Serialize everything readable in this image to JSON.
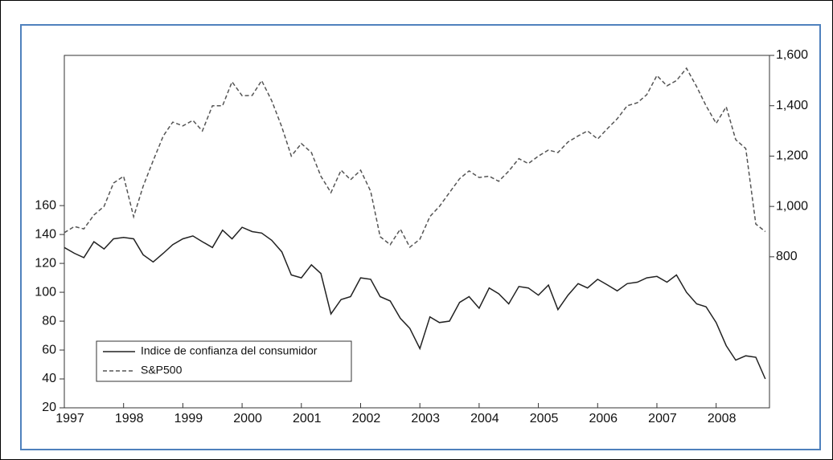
{
  "chart_data": {
    "type": "line",
    "x": [
      1997,
      1997.17,
      1997.33,
      1997.5,
      1997.67,
      1997.83,
      1998,
      1998.17,
      1998.33,
      1998.5,
      1998.67,
      1998.83,
      1999,
      1999.17,
      1999.33,
      1999.5,
      1999.67,
      1999.83,
      2000,
      2000.17,
      2000.33,
      2000.5,
      2000.67,
      2000.83,
      2001,
      2001.17,
      2001.33,
      2001.5,
      2001.67,
      2001.83,
      2002,
      2002.17,
      2002.33,
      2002.5,
      2002.67,
      2002.83,
      2003,
      2003.17,
      2003.33,
      2003.5,
      2003.67,
      2003.83,
      2004,
      2004.17,
      2004.33,
      2004.5,
      2004.67,
      2004.83,
      2005,
      2005.17,
      2005.33,
      2005.5,
      2005.67,
      2005.83,
      2006,
      2006.17,
      2006.33,
      2006.5,
      2006.67,
      2006.83,
      2007,
      2007.17,
      2007.33,
      2007.5,
      2007.67,
      2007.83,
      2008,
      2008.17,
      2008.33,
      2008.5,
      2008.67,
      2008.83
    ],
    "series": [
      {
        "name": "Indice de confianza del consumidor",
        "color": "#222222",
        "dash": false,
        "values": [
          131,
          127,
          124,
          135,
          130,
          137,
          138,
          137,
          126,
          121,
          127,
          133,
          137,
          139,
          135,
          131,
          143,
          137,
          145,
          142,
          141,
          136,
          128,
          112,
          110,
          119,
          113,
          85,
          95,
          97,
          110,
          109,
          97,
          94,
          82,
          75,
          61,
          83,
          79,
          80,
          93,
          97,
          89,
          103,
          99,
          92,
          104,
          103,
          98,
          105,
          88,
          98,
          106,
          103,
          109,
          105,
          101,
          106,
          107,
          110,
          111,
          107,
          112,
          100,
          92,
          90,
          79,
          63,
          53,
          56,
          55,
          40
        ]
      },
      {
        "name": "S&P500",
        "color": "#555555",
        "dash": true,
        "axis": "y2",
        "values": [
          896,
          920,
          911,
          966,
          1000,
          1093,
          1120,
          959,
          1080,
          1182,
          1280,
          1335,
          1320,
          1342,
          1300,
          1400,
          1400,
          1495,
          1440,
          1441,
          1500,
          1420,
          1316,
          1200,
          1250,
          1214,
          1120,
          1055,
          1144,
          1106,
          1144,
          1060,
          880,
          848,
          910,
          838,
          870,
          960,
          1000,
          1055,
          1110,
          1141,
          1115,
          1120,
          1100,
          1140,
          1190,
          1170,
          1200,
          1224,
          1214,
          1256,
          1280,
          1300,
          1268,
          1310,
          1348,
          1400,
          1412,
          1444,
          1520,
          1479,
          1500,
          1549,
          1476,
          1400,
          1330,
          1396,
          1265,
          1230,
          930,
          900
        ]
      }
    ],
    "xlim": [
      1997,
      2008.9
    ],
    "xticks": [
      1997,
      1998,
      1999,
      2000,
      2001,
      2002,
      2003,
      2004,
      2005,
      2006,
      2007,
      2008
    ],
    "ylim": [
      20,
      264
    ],
    "yticks": [
      20,
      40,
      60,
      80,
      100,
      120,
      140,
      160
    ],
    "y2lim": [
      200,
      1600
    ],
    "y2ticks": [
      {
        "value": 800,
        "label": "800"
      },
      {
        "value": 1000,
        "label": "1,000"
      },
      {
        "value": 1200,
        "label": "1,200"
      },
      {
        "value": 1400,
        "label": "1,400"
      },
      {
        "value": 1600,
        "label": "1,600"
      }
    ],
    "legend": "lower left"
  }
}
